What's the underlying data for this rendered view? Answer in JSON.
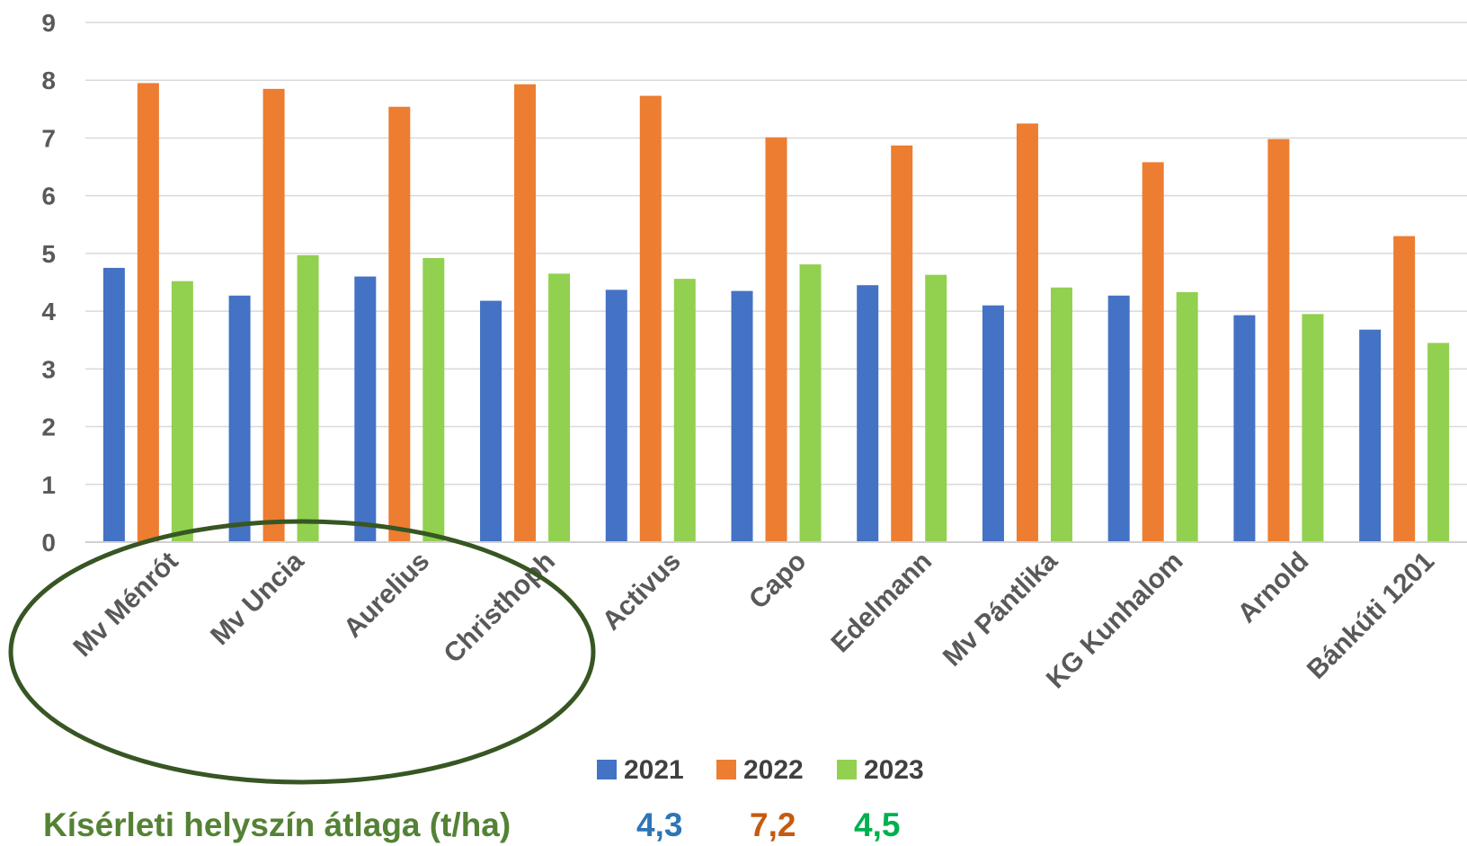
{
  "chart_data": {
    "type": "bar",
    "categories": [
      "Mv Ménrót",
      "Mv Uncia",
      "Aurelius",
      "Christhoph",
      "Activus",
      "Capo",
      "Edelmann",
      "Mv Pántlika",
      "KG Kunhalom",
      "Arnold",
      "Bánkúti 1201"
    ],
    "series": [
      {
        "name": "2021",
        "color": "#4472C4",
        "values": [
          4.75,
          4.27,
          4.6,
          4.18,
          4.37,
          4.35,
          4.45,
          4.1,
          4.27,
          3.93,
          3.68
        ]
      },
      {
        "name": "2022",
        "color": "#ED7D31",
        "values": [
          7.95,
          7.85,
          7.54,
          7.93,
          7.73,
          7.01,
          6.87,
          7.25,
          6.58,
          6.98,
          5.3
        ]
      },
      {
        "name": "2023",
        "color": "#92D050",
        "values": [
          4.52,
          4.97,
          4.92,
          4.65,
          4.56,
          4.81,
          4.63,
          4.41,
          4.33,
          3.95,
          3.45
        ]
      }
    ],
    "ylim": [
      0,
      9
    ],
    "yticks": [
      "0",
      "1",
      "2",
      "3",
      "4",
      "5",
      "6",
      "7",
      "8",
      "9"
    ],
    "grid": true,
    "legend_position": "bottom",
    "highlight": {
      "shape": "ellipse",
      "color": "#375623",
      "categories": [
        "Mv Ménrót",
        "Mv Uncia",
        "Aurelius",
        "Christhoph"
      ]
    }
  },
  "averages": {
    "caption": "Kísérleti helyszín átlaga (t/ha)",
    "caption_color": "#548235",
    "items": [
      {
        "value": "4,3",
        "color": "#2E75B6"
      },
      {
        "value": "7,2",
        "color": "#C55A11"
      },
      {
        "value": "4,5",
        "color": "#00B050"
      }
    ]
  }
}
